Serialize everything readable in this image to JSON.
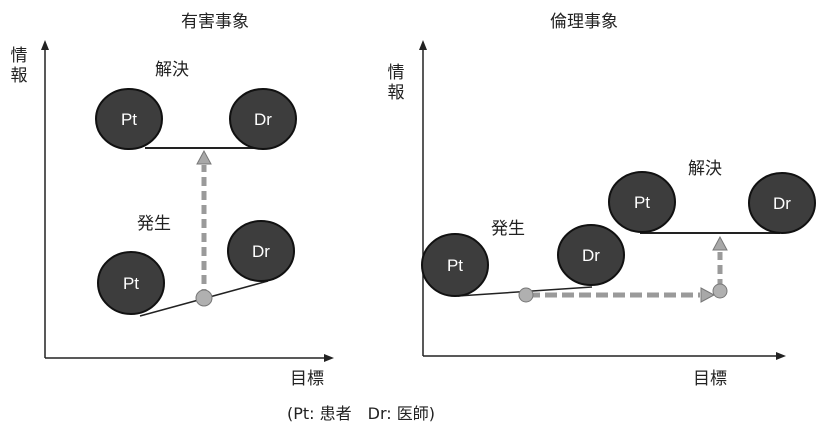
{
  "caption": "(Pt: 患者　Dr: 医師)",
  "panels": {
    "left": {
      "title": "有害事象",
      "y_axis_label": "情報",
      "x_axis_label": "目標",
      "label_resolution": "解決",
      "label_occurrence": "発生",
      "nodes": {
        "top_pt": "Pt",
        "top_dr": "Dr",
        "bottom_pt": "Pt",
        "bottom_dr": "Dr"
      }
    },
    "right": {
      "title": "倫理事象",
      "y_axis_label": "情報",
      "x_axis_label": "目標",
      "label_resolution": "解決",
      "label_occurrence": "発生",
      "nodes": {
        "top_pt": "Pt",
        "top_dr": "Dr",
        "bottom_pt": "Pt",
        "bottom_dr": "Dr"
      }
    }
  },
  "colors": {
    "node_fill": "#3d3d3d",
    "node_stroke": "#111111",
    "axis": "#222222",
    "arrow": "#9a9a9a"
  }
}
